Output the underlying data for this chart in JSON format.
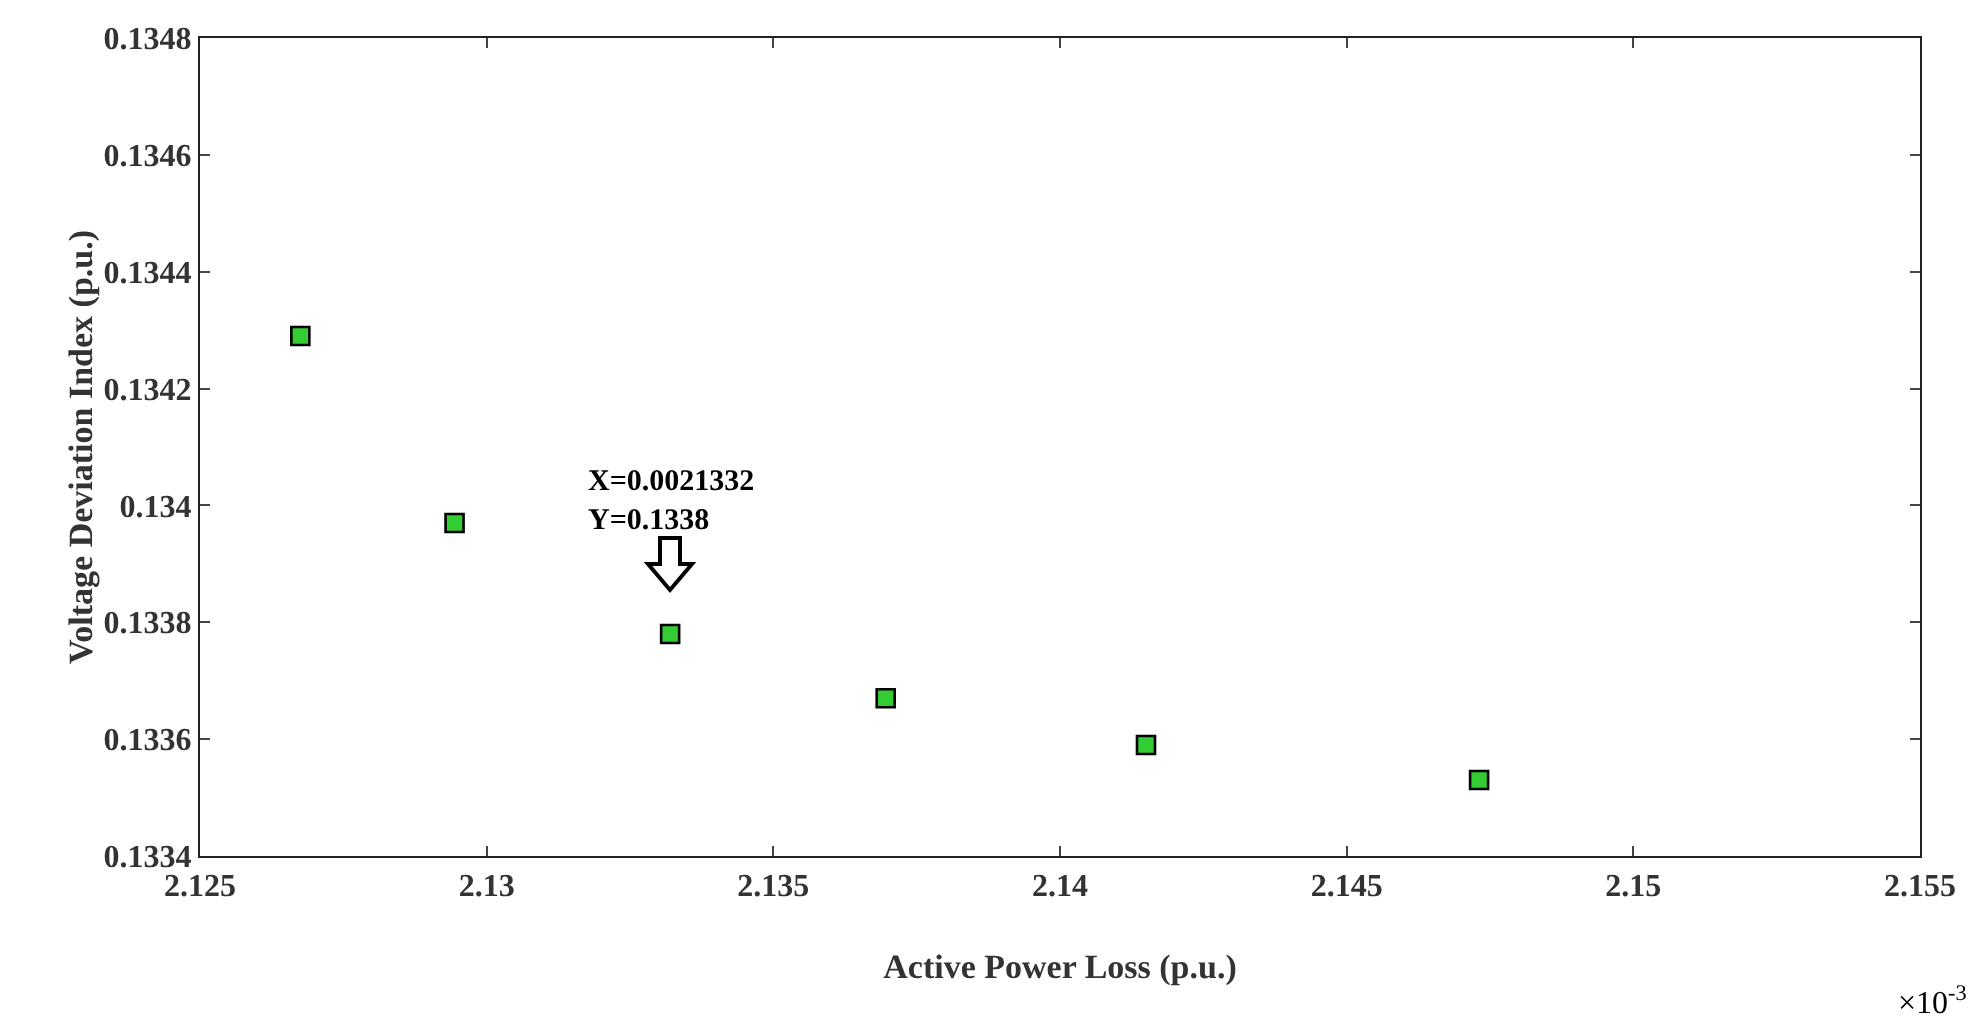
{
  "chart_data": {
    "type": "scatter",
    "xlabel": "Active Power Loss (p.u.)",
    "ylabel": "Voltage Deviation Index (p.u.)",
    "x": [
      2.12675,
      2.12944,
      2.1332,
      2.13696,
      2.1415,
      2.14731
    ],
    "series": [
      {
        "color": "#33cc33",
        "values": [
          0.13429,
          0.13397,
          0.13378,
          0.13367,
          0.13359,
          0.13353
        ]
      }
    ],
    "xlim": [
      2.125,
      2.155
    ],
    "xticks": [
      2.125,
      2.13,
      2.135,
      2.14,
      2.145,
      2.15,
      2.155
    ],
    "ylim": [
      0.1334,
      0.1348
    ],
    "yticks": [
      0.1334,
      0.1336,
      0.1338,
      0.134,
      0.1342,
      0.1344,
      0.1346,
      0.1348
    ],
    "annotations": [
      {
        "text": "X=0.0021332\nY=0.1338",
        "x": 2.1332,
        "y": 0.1338
      },
      "×10$^{-3}$"
    ],
    "marker": "square",
    "grid": false
  }
}
